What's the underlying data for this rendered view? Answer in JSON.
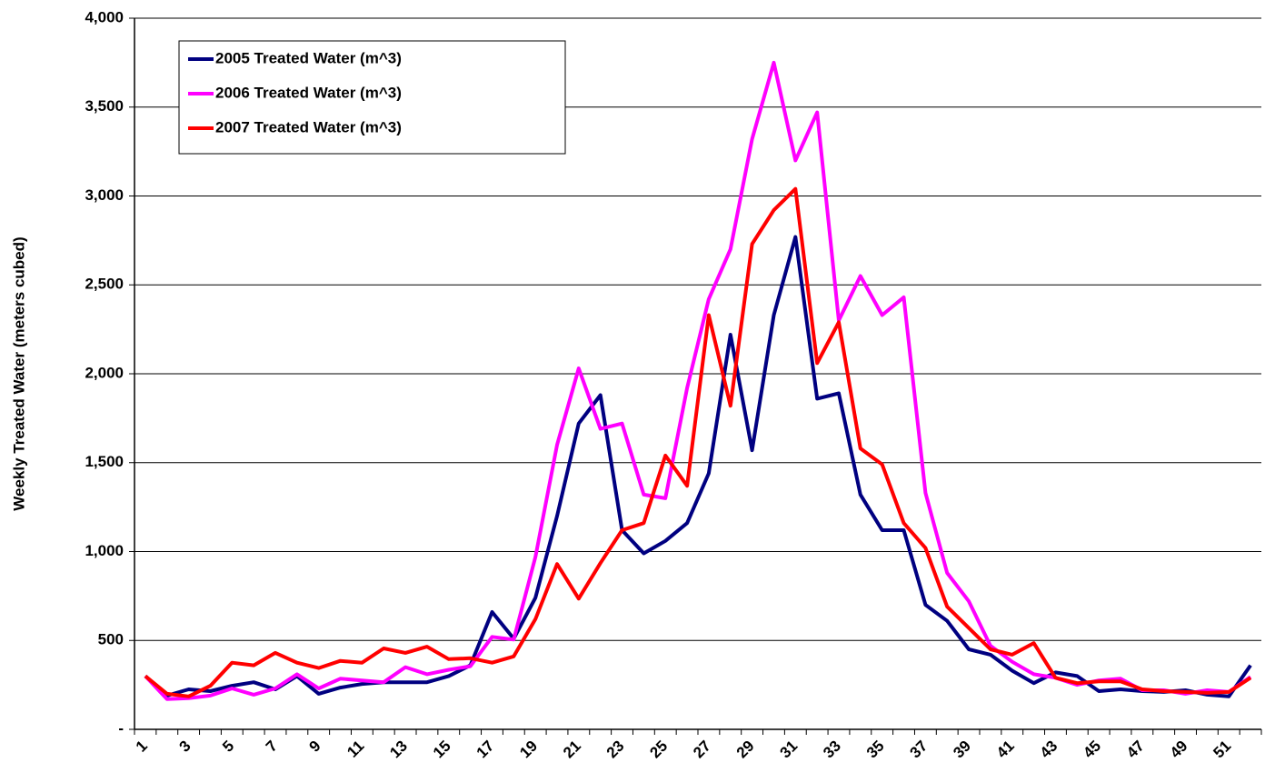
{
  "chart_data": {
    "type": "line",
    "y_label": "Weekly Treated Water (meters cubed)",
    "categories": [
      "1",
      null,
      "3",
      null,
      "5",
      null,
      "7",
      null,
      "9",
      null,
      "11",
      null,
      "13",
      null,
      "15",
      null,
      "17",
      null,
      "19",
      null,
      "21",
      null,
      "23",
      null,
      "25",
      null,
      "27",
      null,
      "29",
      null,
      "31",
      null,
      "33",
      null,
      "35",
      null,
      "37",
      null,
      "39",
      null,
      "41",
      null,
      "43",
      null,
      "45",
      null,
      "47",
      null,
      "49",
      null,
      "51",
      null
    ],
    "series": [
      {
        "name": "2005 Treated Water (m^3)",
        "color": "#000080",
        "values": [
          300,
          190,
          225,
          215,
          245,
          265,
          225,
          300,
          200,
          235,
          255,
          265,
          265,
          265,
          300,
          360,
          660,
          510,
          740,
          1200,
          1720,
          1880,
          1120,
          990,
          1060,
          1160,
          1440,
          2220,
          1570,
          2330,
          2770,
          1860,
          1890,
          1320,
          1120,
          1120,
          700,
          610,
          450,
          420,
          330,
          260,
          320,
          300,
          215,
          225,
          215,
          210,
          220,
          195,
          185,
          360
        ]
      },
      {
        "name": "2006 Treated Water (m^3)",
        "color": "#ff00ff",
        "values": [
          300,
          170,
          175,
          190,
          230,
          195,
          230,
          310,
          230,
          285,
          275,
          265,
          350,
          310,
          335,
          355,
          520,
          505,
          970,
          1600,
          2030,
          1690,
          1720,
          1320,
          1300,
          1920,
          2420,
          2700,
          3320,
          3750,
          3200,
          3470,
          2300,
          2550,
          2330,
          2430,
          1330,
          880,
          720,
          470,
          380,
          310,
          290,
          250,
          275,
          285,
          220,
          220,
          200,
          220,
          210,
          295
        ]
      },
      {
        "name": "2007 Treated Water (m^3)",
        "color": "#ff0000",
        "values": [
          300,
          200,
          185,
          245,
          375,
          360,
          430,
          375,
          345,
          385,
          375,
          455,
          430,
          465,
          395,
          400,
          375,
          410,
          620,
          930,
          735,
          935,
          1120,
          1160,
          1540,
          1370,
          2330,
          1820,
          2730,
          2920,
          3040,
          2060,
          2290,
          1580,
          1490,
          1160,
          1020,
          690,
          570,
          450,
          420,
          485,
          290,
          260,
          270,
          270,
          225,
          215,
          210,
          205,
          210,
          290
        ]
      }
    ],
    "ylim": [
      0,
      4000
    ],
    "yticks": [
      {
        "value": 0,
        "label": "-"
      },
      500,
      {
        "value": 1000,
        "label": "1,000"
      },
      {
        "value": 1500,
        "label": "1,500"
      },
      {
        "value": 2000,
        "label": "2,000"
      },
      {
        "value": 2500,
        "label": "2,500"
      },
      {
        "value": 3000,
        "label": "3,000"
      },
      {
        "value": 3500,
        "label": "3,500"
      },
      {
        "value": 4000,
        "label": "4,000"
      }
    ],
    "grid": true,
    "legend": "upper left"
  }
}
